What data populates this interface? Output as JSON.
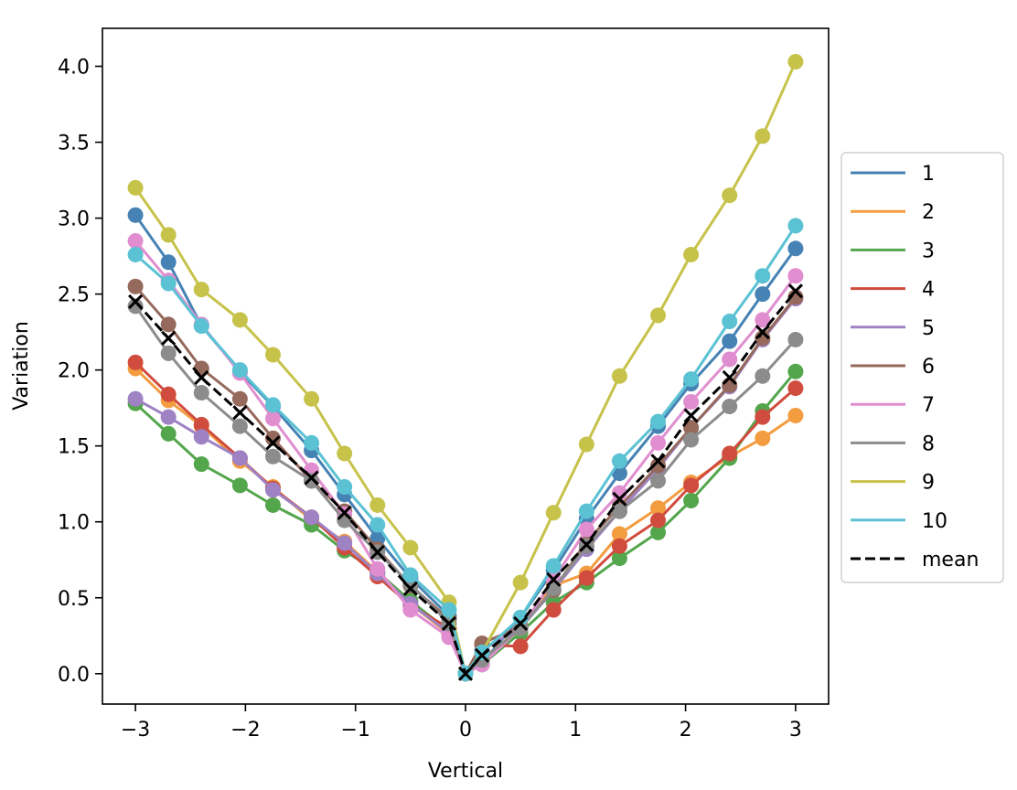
{
  "chart_data": {
    "type": "line",
    "title": "",
    "xlabel": "Vertical",
    "ylabel": "Variation",
    "xlim": [
      -3.3,
      3.3
    ],
    "ylim": [
      -0.2,
      4.25
    ],
    "xticks": [
      -3,
      -2,
      -1,
      0,
      1,
      2,
      3
    ],
    "xtick_labels": [
      "−3",
      "−2",
      "−1",
      "0",
      "1",
      "2",
      "3"
    ],
    "yticks": [
      0.0,
      0.5,
      1.0,
      1.5,
      2.0,
      2.5,
      3.0,
      3.5,
      4.0
    ],
    "ytick_labels": [
      "0.0",
      "0.5",
      "1.0",
      "1.5",
      "2.0",
      "2.5",
      "3.0",
      "3.5",
      "4.0"
    ],
    "grid": false,
    "legend_position": "right-outside",
    "x": [
      -3.0,
      -2.7,
      -2.4,
      -2.05,
      -1.75,
      -1.4,
      -1.1,
      -0.8,
      -0.5,
      -0.15,
      0.0,
      0.15,
      0.5,
      0.8,
      1.1,
      1.4,
      1.75,
      2.05,
      2.4,
      2.7,
      3.0
    ],
    "series": [
      {
        "name": "1",
        "color": "#4682b4",
        "values": [
          3.02,
          2.71,
          2.29,
          1.99,
          1.76,
          1.47,
          1.18,
          0.89,
          0.63,
          0.38,
          0.0,
          0.07,
          0.37,
          0.68,
          1.02,
          1.32,
          1.63,
          1.91,
          2.19,
          2.5,
          2.8
        ]
      },
      {
        "name": "2",
        "color": "#f39c40",
        "values": [
          2.01,
          1.8,
          1.63,
          1.4,
          1.23,
          1.01,
          0.87,
          0.67,
          0.46,
          0.26,
          0.0,
          0.08,
          0.31,
          0.58,
          0.66,
          0.92,
          1.09,
          1.26,
          1.43,
          1.55,
          1.7
        ]
      },
      {
        "name": "3",
        "color": "#54a64d",
        "values": [
          1.78,
          1.58,
          1.38,
          1.24,
          1.11,
          0.98,
          0.81,
          0.67,
          0.48,
          0.28,
          0.0,
          0.06,
          0.27,
          0.47,
          0.6,
          0.76,
          0.93,
          1.14,
          1.42,
          1.73,
          1.99
        ]
      },
      {
        "name": "4",
        "color": "#d04c3e",
        "values": [
          2.05,
          1.84,
          1.64,
          1.42,
          1.22,
          1.03,
          0.83,
          0.64,
          0.45,
          0.3,
          0.0,
          0.19,
          0.18,
          0.42,
          0.63,
          0.84,
          1.01,
          1.24,
          1.45,
          1.69,
          1.88
        ]
      },
      {
        "name": "5",
        "color": "#9e82c4",
        "values": [
          1.81,
          1.69,
          1.56,
          1.42,
          1.21,
          1.03,
          0.86,
          0.66,
          0.46,
          0.27,
          0.0,
          0.16,
          0.3,
          0.55,
          0.82,
          1.07,
          1.35,
          1.62,
          1.89,
          2.2,
          2.47
        ]
      },
      {
        "name": "6",
        "color": "#95695b",
        "values": [
          2.55,
          2.3,
          2.01,
          1.81,
          1.55,
          1.27,
          1.07,
          0.82,
          0.58,
          0.36,
          0.0,
          0.2,
          0.31,
          0.55,
          0.87,
          1.1,
          1.37,
          1.62,
          1.9,
          2.21,
          2.48
        ]
      },
      {
        "name": "7",
        "color": "#e08ecf",
        "values": [
          2.85,
          2.59,
          2.3,
          1.98,
          1.68,
          1.34,
          1.05,
          0.69,
          0.42,
          0.24,
          0.0,
          0.06,
          0.3,
          0.62,
          0.95,
          1.19,
          1.52,
          1.79,
          2.07,
          2.33,
          2.62
        ]
      },
      {
        "name": "8",
        "color": "#8c8c8c",
        "values": [
          2.42,
          2.11,
          1.85,
          1.63,
          1.43,
          1.27,
          1.01,
          0.8,
          0.59,
          0.33,
          0.0,
          0.09,
          0.3,
          0.56,
          0.84,
          1.07,
          1.27,
          1.54,
          1.76,
          1.96,
          2.2
        ]
      },
      {
        "name": "9",
        "color": "#c6c24a",
        "values": [
          3.2,
          2.89,
          2.53,
          2.33,
          2.1,
          1.81,
          1.45,
          1.11,
          0.83,
          0.47,
          0.0,
          0.14,
          0.6,
          1.06,
          1.51,
          1.96,
          2.36,
          2.76,
          3.15,
          3.54,
          4.03
        ]
      },
      {
        "name": "10",
        "color": "#5bc2d4",
        "values": [
          2.76,
          2.57,
          2.29,
          2.0,
          1.77,
          1.52,
          1.23,
          0.98,
          0.65,
          0.42,
          0.0,
          0.14,
          0.37,
          0.71,
          1.07,
          1.4,
          1.66,
          1.94,
          2.32,
          2.62,
          2.95
        ]
      }
    ],
    "mean": {
      "name": "mean",
      "color": "#000000",
      "values": [
        2.45,
        2.21,
        1.95,
        1.72,
        1.52,
        1.29,
        1.06,
        0.8,
        0.56,
        0.33,
        0.0,
        0.12,
        0.33,
        0.62,
        0.85,
        1.15,
        1.4,
        1.7,
        1.95,
        2.25,
        2.52
      ]
    }
  }
}
